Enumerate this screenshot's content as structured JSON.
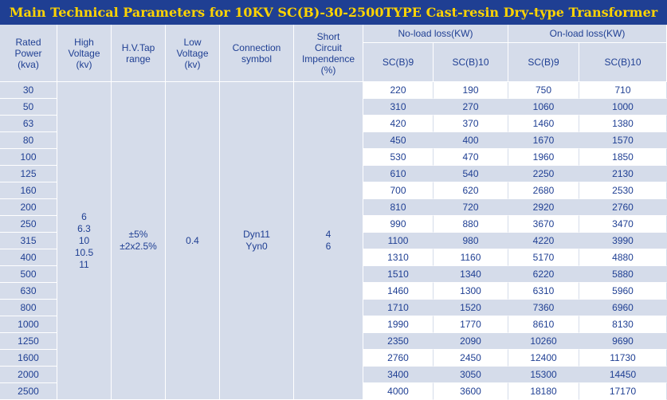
{
  "title": "Main Technical Parameters for 10KV SC(B)-30-2500TYPE Cast-resin Dry-type Transformer",
  "headers": {
    "rated_power": [
      "Rated",
      "Power",
      "(kva)"
    ],
    "high_voltage": [
      "High",
      "Voltage",
      "(kv)"
    ],
    "hv_tap": [
      "H.V.Tap",
      "range"
    ],
    "low_voltage": [
      "Low",
      "Voltage",
      "(kv)"
    ],
    "connection": [
      "Connection",
      "symbol"
    ],
    "short_circuit": [
      "Short",
      "Circuit",
      "Impendence",
      "(%)"
    ],
    "no_load": "No-load loss(KW)",
    "on_load": "On-load loss(KW)",
    "scb9": "SC(B)9",
    "scb10": "SC(B)10"
  },
  "common": {
    "high_voltage": [
      "6",
      "6.3",
      "10",
      "10.5",
      "11"
    ],
    "hv_tap": [
      "±5%",
      "±2x2.5%"
    ],
    "low_voltage": "0.4",
    "connection": [
      "Dyn11",
      "Yyn0"
    ],
    "short_circuit": [
      "4",
      "6"
    ]
  },
  "rows": [
    {
      "power": "30",
      "nl9": "220",
      "nl10": "190",
      "ol9": "750",
      "ol10": "710"
    },
    {
      "power": "50",
      "nl9": "310",
      "nl10": "270",
      "ol9": "1060",
      "ol10": "1000"
    },
    {
      "power": "63",
      "nl9": "420",
      "nl10": "370",
      "ol9": "1460",
      "ol10": "1380"
    },
    {
      "power": "80",
      "nl9": "450",
      "nl10": "400",
      "ol9": "1670",
      "ol10": "1570"
    },
    {
      "power": "100",
      "nl9": "530",
      "nl10": "470",
      "ol9": "1960",
      "ol10": "1850"
    },
    {
      "power": "125",
      "nl9": "610",
      "nl10": "540",
      "ol9": "2250",
      "ol10": "2130"
    },
    {
      "power": "160",
      "nl9": "700",
      "nl10": "620",
      "ol9": "2680",
      "ol10": "2530"
    },
    {
      "power": "200",
      "nl9": "810",
      "nl10": "720",
      "ol9": "2920",
      "ol10": "2760"
    },
    {
      "power": "250",
      "nl9": "990",
      "nl10": "880",
      "ol9": "3670",
      "ol10": "3470"
    },
    {
      "power": "315",
      "nl9": "1100",
      "nl10": "980",
      "ol9": "4220",
      "ol10": "3990"
    },
    {
      "power": "400",
      "nl9": "1310",
      "nl10": "1160",
      "ol9": "5170",
      "ol10": "4880"
    },
    {
      "power": "500",
      "nl9": "1510",
      "nl10": "1340",
      "ol9": "6220",
      "ol10": "5880"
    },
    {
      "power": "630",
      "nl9": "1460",
      "nl10": "1300",
      "ol9": "6310",
      "ol10": "5960"
    },
    {
      "power": "800",
      "nl9": "1710",
      "nl10": "1520",
      "ol9": "7360",
      "ol10": "6960"
    },
    {
      "power": "1000",
      "nl9": "1990",
      "nl10": "1770",
      "ol9": "8610",
      "ol10": "8130"
    },
    {
      "power": "1250",
      "nl9": "2350",
      "nl10": "2090",
      "ol9": "10260",
      "ol10": "9690"
    },
    {
      "power": "1600",
      "nl9": "2760",
      "nl10": "2450",
      "ol9": "12400",
      "ol10": "11730"
    },
    {
      "power": "2000",
      "nl9": "3400",
      "nl10": "3050",
      "ol9": "15300",
      "ol10": "14450"
    },
    {
      "power": "2500",
      "nl9": "4000",
      "nl10": "3600",
      "ol9": "18180",
      "ol10": "17170"
    }
  ]
}
